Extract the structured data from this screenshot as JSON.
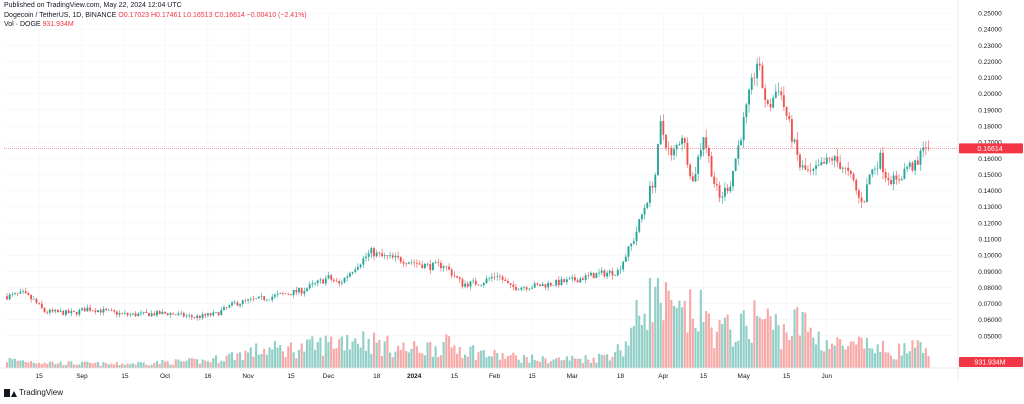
{
  "header": {
    "published": "Published on TradingView.com, May 22, 2024 12:04 UTC",
    "symbol": "Dogecoin / TetherUS, 1D, BINANCE",
    "ohlc": "O0.17023 H0.17461 L0.16513 C0.16614 −0.00410 (−2.41%)",
    "vol_label": "Vol · DOGE",
    "vol_value": "931.934M"
  },
  "footer": {
    "brand": "TradingView"
  },
  "colors": {
    "up": "#26a69a",
    "down": "#ef5350",
    "up_vol": "#91cfc7",
    "down_vol": "#f7a9a7",
    "last_price": "#f23645",
    "grid": "#f0f3fa"
  },
  "chart_data": {
    "type": "candlestick",
    "symbol": "DOGEUSDT",
    "ylim": [
      0.04,
      0.25
    ],
    "y_ticks": [
      "0.25000",
      "0.24000",
      "0.23000",
      "0.22000",
      "0.21000",
      "0.20000",
      "0.19000",
      "0.18000",
      "0.17000",
      "0.16000",
      "0.15000",
      "0.14000",
      "0.13000",
      "0.12000",
      "0.11000",
      "0.10000",
      "0.09000",
      "0.08000",
      "0.07000",
      "0.06000",
      "0.05000"
    ],
    "x_ticks": [
      "15",
      "Sep",
      "15",
      "Oct",
      "16",
      "Nov",
      "15",
      "Dec",
      "18",
      "2024",
      "15",
      "Feb",
      "15",
      "Mar",
      "18",
      "Apr",
      "15",
      "May",
      "15",
      "Jun"
    ],
    "x_bold": [
      "2024"
    ],
    "last_price": 0.16614,
    "last_price_label": "0.16614",
    "volume_label": "931.934M",
    "price_anchors": [
      [
        0,
        0.0745
      ],
      [
        6,
        0.076
      ],
      [
        10,
        0.072
      ],
      [
        14,
        0.065
      ],
      [
        25,
        0.064
      ],
      [
        30,
        0.067
      ],
      [
        45,
        0.063
      ],
      [
        60,
        0.064
      ],
      [
        70,
        0.0615
      ],
      [
        78,
        0.0635
      ],
      [
        85,
        0.07
      ],
      [
        95,
        0.073
      ],
      [
        110,
        0.078
      ],
      [
        120,
        0.086
      ],
      [
        124,
        0.082
      ],
      [
        130,
        0.093
      ],
      [
        136,
        0.102
      ],
      [
        140,
        0.099
      ],
      [
        148,
        0.097
      ],
      [
        158,
        0.093
      ],
      [
        163,
        0.094
      ],
      [
        170,
        0.082
      ],
      [
        177,
        0.083
      ],
      [
        183,
        0.088
      ],
      [
        188,
        0.08
      ],
      [
        198,
        0.081
      ],
      [
        210,
        0.084
      ],
      [
        220,
        0.088
      ],
      [
        228,
        0.09
      ],
      [
        234,
        0.11
      ],
      [
        238,
        0.13
      ],
      [
        242,
        0.15
      ],
      [
        244,
        0.18
      ],
      [
        248,
        0.16
      ],
      [
        252,
        0.175
      ],
      [
        256,
        0.145
      ],
      [
        260,
        0.175
      ],
      [
        264,
        0.145
      ],
      [
        266,
        0.135
      ],
      [
        270,
        0.145
      ],
      [
        274,
        0.175
      ],
      [
        278,
        0.205
      ],
      [
        280,
        0.22
      ],
      [
        284,
        0.19
      ],
      [
        288,
        0.205
      ],
      [
        292,
        0.18
      ],
      [
        296,
        0.155
      ],
      [
        300,
        0.15
      ],
      [
        304,
        0.155
      ],
      [
        308,
        0.16
      ],
      [
        312,
        0.155
      ],
      [
        316,
        0.145
      ],
      [
        318,
        0.135
      ],
      [
        320,
        0.135
      ],
      [
        322,
        0.15
      ],
      [
        326,
        0.16
      ],
      [
        328,
        0.15
      ],
      [
        332,
        0.145
      ],
      [
        336,
        0.155
      ],
      [
        340,
        0.155
      ],
      [
        342,
        0.17
      ],
      [
        344,
        0.16614
      ]
    ],
    "volume_anchors": [
      [
        0,
        25
      ],
      [
        20,
        15
      ],
      [
        40,
        12
      ],
      [
        60,
        18
      ],
      [
        75,
        22
      ],
      [
        85,
        40
      ],
      [
        95,
        55
      ],
      [
        110,
        60
      ],
      [
        120,
        75
      ],
      [
        130,
        95
      ],
      [
        140,
        70
      ],
      [
        150,
        55
      ],
      [
        165,
        70
      ],
      [
        180,
        40
      ],
      [
        200,
        25
      ],
      [
        220,
        30
      ],
      [
        230,
        60
      ],
      [
        236,
        160
      ],
      [
        240,
        230
      ],
      [
        244,
        200
      ],
      [
        250,
        150
      ],
      [
        258,
        170
      ],
      [
        265,
        110
      ],
      [
        275,
        120
      ],
      [
        280,
        160
      ],
      [
        290,
        110
      ],
      [
        296,
        140
      ],
      [
        305,
        80
      ],
      [
        315,
        60
      ],
      [
        320,
        70
      ],
      [
        330,
        50
      ],
      [
        340,
        60
      ],
      [
        344,
        40
      ]
    ]
  }
}
